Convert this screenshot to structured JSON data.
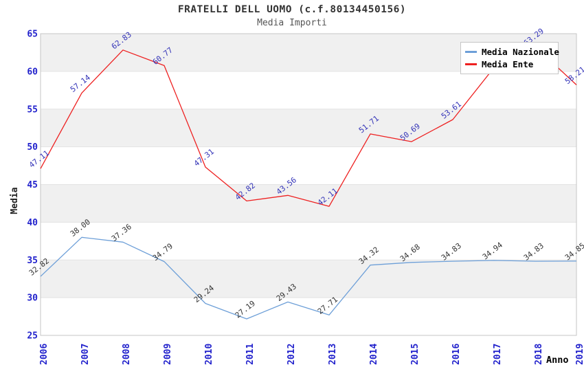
{
  "header": {
    "title": "FRATELLI DELL UOMO (c.f.80134450156)",
    "subtitle": "Media Importi"
  },
  "axis": {
    "y_label": "Media",
    "x_label": "Anno",
    "tick_color": "#2222cc"
  },
  "legend": {
    "items": [
      {
        "label": "Media Nazionale",
        "color": "#6d9fd8"
      },
      {
        "label": "Media Ente",
        "color": "#ee2020"
      }
    ]
  },
  "chart_data": {
    "type": "line",
    "title": "FRATELLI DELL UOMO (c.f.80134450156)",
    "subtitle": "Media Importi",
    "xlabel": "Anno",
    "ylabel": "Media",
    "x_categories": [
      "2006",
      "2007",
      "2008",
      "2009",
      "2010",
      "2011",
      "2012",
      "2013",
      "2014",
      "2015",
      "2016",
      "2017",
      "2018",
      "2019"
    ],
    "y_ticks": [
      25,
      30,
      35,
      40,
      45,
      50,
      55,
      60,
      65
    ],
    "ylim": [
      25,
      65
    ],
    "grid_bands_alternating": [
      "#f0f0f0",
      "#ffffff"
    ],
    "legend_position": "top-right",
    "series": [
      {
        "name": "Media Nazionale",
        "color": "#6d9fd8",
        "label_color": "#333333",
        "values": [
          32.82,
          38.0,
          37.36,
          34.79,
          29.24,
          27.19,
          29.43,
          27.71,
          34.32,
          34.68,
          34.83,
          34.94,
          34.83,
          34.85
        ],
        "labels": [
          "32.82",
          "38.00",
          "37.36",
          "34.79",
          "29.24",
          "27.19",
          "29.43",
          "27.71",
          "34.32",
          "34.68",
          "34.83",
          "34.94",
          "34.83",
          "34.85"
        ]
      },
      {
        "name": "Media Ente",
        "color": "#ee2020",
        "label_color": "#3434b8",
        "values": [
          47.11,
          57.14,
          62.83,
          60.77,
          47.31,
          42.82,
          43.56,
          42.11,
          51.71,
          50.69,
          53.61,
          60.5,
          63.29,
          58.21
        ],
        "labels": [
          "47.11",
          "57.14",
          "62.83",
          "60.77",
          "47.31",
          "42.82",
          "43.56",
          "42.11",
          "51.71",
          "50.69",
          "53.61",
          null,
          "63.29",
          "58.21"
        ]
      }
    ]
  }
}
